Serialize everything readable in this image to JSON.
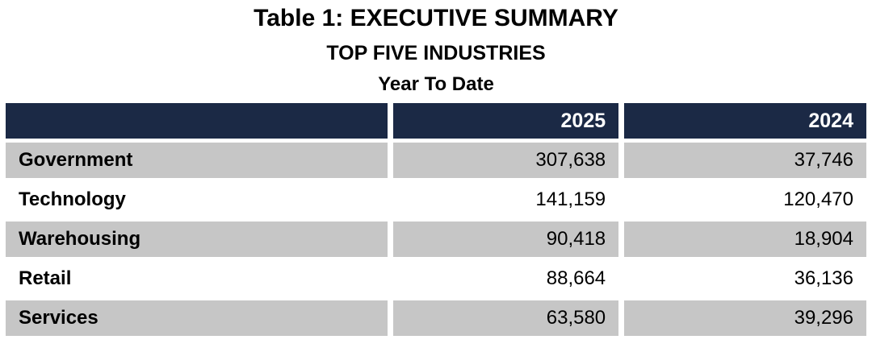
{
  "titles": {
    "line1": "Table 1: EXECUTIVE SUMMARY",
    "line2": "TOP FIVE INDUSTRIES",
    "line3": "Year To Date"
  },
  "table": {
    "columns": {
      "industry": "",
      "y2025": "2025",
      "y2024": "2024"
    },
    "rows": [
      {
        "industry": "Government",
        "v2025": "307,638",
        "v2024": "37,746"
      },
      {
        "industry": "Technology",
        "v2025": "141,159",
        "v2024": "120,470"
      },
      {
        "industry": "Warehousing",
        "v2025": "90,418",
        "v2024": "18,904"
      },
      {
        "industry": "Retail",
        "v2025": "88,664",
        "v2024": "36,136"
      },
      {
        "industry": "Services",
        "v2025": "63,580",
        "v2024": "39,296"
      }
    ]
  },
  "colors": {
    "header_bg": "#1b2945",
    "row_alt_bg": "#c6c6c6",
    "header_text": "#ffffff",
    "body_text": "#000000"
  },
  "chart_data": {
    "type": "table",
    "title": "Table 1: EXECUTIVE SUMMARY",
    "subtitle": "TOP FIVE INDUSTRIES",
    "period": "Year To Date",
    "categories": [
      "Government",
      "Technology",
      "Warehousing",
      "Retail",
      "Services"
    ],
    "series": [
      {
        "name": "2025",
        "values": [
          307638,
          141159,
          90418,
          88664,
          63580
        ]
      },
      {
        "name": "2024",
        "values": [
          37746,
          120470,
          18904,
          36136,
          39296
        ]
      }
    ],
    "layout": {
      "alternating_row_shading": true,
      "header_style": "dark-navy"
    }
  }
}
